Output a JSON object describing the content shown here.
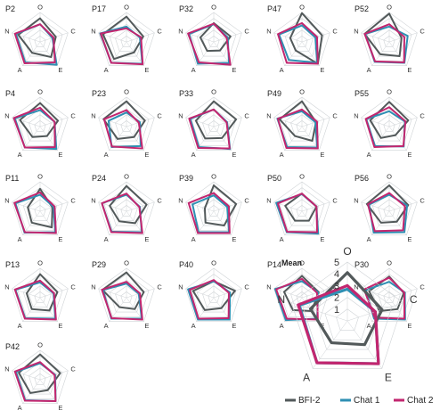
{
  "colors": {
    "BFI-2": "#52595a",
    "Chat 1": "#2e8fb3",
    "Chat 2": "#c2266f",
    "grid": "#cfd3d6"
  },
  "mean_ticks": [
    "1",
    "2",
    "3",
    "4",
    "5"
  ],
  "chart_data": {
    "type": "radar",
    "axes": [
      "O",
      "C",
      "E",
      "A",
      "N"
    ],
    "rlim": [
      0,
      5
    ],
    "legend": {
      "placement": "bottom-right",
      "entries": [
        "BFI-2",
        "Chat 1",
        "Chat 2"
      ]
    },
    "panels": [
      {
        "title": "P2",
        "series": [
          {
            "name": "BFI-2",
            "values": [
              4.0,
              2.8,
              3.2,
              2.3,
              3.9
            ]
          },
          {
            "name": "Chat 1",
            "values": [
              3.0,
              2.2,
              4.8,
              4.3,
              4.3
            ]
          },
          {
            "name": "Chat 2",
            "values": [
              3.0,
              2.4,
              4.3,
              4.5,
              4.5
            ]
          }
        ]
      },
      {
        "title": "P17",
        "series": [
          {
            "name": "BFI-2",
            "values": [
              4.3,
              3.0,
              2.2,
              3.6,
              4.2
            ]
          },
          {
            "name": "Chat 1",
            "values": [
              2.6,
              2.4,
              4.6,
              4.4,
              4.7
            ]
          },
          {
            "name": "Chat 2",
            "values": [
              2.3,
              2.6,
              4.7,
              4.4,
              4.6
            ]
          }
        ]
      },
      {
        "title": "P32",
        "series": [
          {
            "name": "BFI-2",
            "values": [
              3.2,
              3.0,
              1.8,
              1.9,
              2.4
            ]
          },
          {
            "name": "Chat 1",
            "values": [
              3.0,
              2.5,
              4.4,
              4.6,
              4.4
            ]
          },
          {
            "name": "Chat 2",
            "values": [
              3.1,
              2.3,
              4.8,
              4.3,
              4.6
            ]
          }
        ]
      },
      {
        "title": "P47",
        "series": [
          {
            "name": "BFI-2",
            "values": [
              4.9,
              3.6,
              4.6,
              1.8,
              2.1
            ]
          },
          {
            "name": "Chat 1",
            "values": [
              2.8,
              2.4,
              4.4,
              3.8,
              4.1
            ]
          },
          {
            "name": "Chat 2",
            "values": [
              3.2,
              2.7,
              4.6,
              4.4,
              4.3
            ]
          }
        ]
      },
      {
        "title": "P52",
        "series": [
          {
            "name": "BFI-2",
            "values": [
              4.8,
              2.2,
              3.0,
              2.6,
              4.4
            ]
          },
          {
            "name": "Chat 1",
            "values": [
              2.6,
              3.3,
              4.4,
              4.2,
              4.3
            ]
          },
          {
            "name": "Chat 2",
            "values": [
              3.0,
              2.7,
              4.3,
              4.1,
              4.4
            ]
          }
        ]
      },
      {
        "title": "P4",
        "series": [
          {
            "name": "BFI-2",
            "values": [
              4.0,
              3.2,
              2.0,
              2.2,
              3.6
            ]
          },
          {
            "name": "Chat 1",
            "values": [
              2.8,
              2.6,
              4.7,
              4.4,
              4.5
            ]
          },
          {
            "name": "Chat 2",
            "values": [
              3.2,
              2.6,
              4.3,
              4.4,
              4.7
            ]
          }
        ]
      },
      {
        "title": "P23",
        "series": [
          {
            "name": "BFI-2",
            "values": [
              4.3,
              3.3,
              2.2,
              2.6,
              4.1
            ]
          },
          {
            "name": "Chat 1",
            "values": [
              2.4,
              2.4,
              4.1,
              4.3,
              3.2
            ]
          },
          {
            "name": "Chat 2",
            "values": [
              2.8,
              2.2,
              4.6,
              4.2,
              4.0
            ]
          }
        ]
      },
      {
        "title": "P33",
        "series": [
          {
            "name": "BFI-2",
            "values": [
              4.3,
              4.0,
              2.4,
              2.5,
              3.2
            ]
          },
          {
            "name": "Chat 1",
            "values": [
              2.9,
              2.4,
              4.7,
              4.3,
              4.2
            ]
          },
          {
            "name": "Chat 2",
            "values": [
              2.9,
              2.3,
              4.6,
              4.5,
              4.4
            ]
          }
        ]
      },
      {
        "title": "P49",
        "series": [
          {
            "name": "BFI-2",
            "values": [
              4.3,
              2.5,
              3.0,
              2.0,
              4.0
            ]
          },
          {
            "name": "Chat 1",
            "values": [
              2.6,
              2.4,
              4.4,
              4.3,
              4.4
            ]
          },
          {
            "name": "Chat 2",
            "values": [
              2.9,
              2.7,
              4.6,
              4.5,
              4.3
            ]
          }
        ]
      },
      {
        "title": "P55",
        "series": [
          {
            "name": "BFI-2",
            "values": [
              4.2,
              3.4,
              1.8,
              2.4,
              3.4
            ]
          },
          {
            "name": "Chat 1",
            "values": [
              2.6,
              2.8,
              4.2,
              4.1,
              4.1
            ]
          },
          {
            "name": "Chat 2",
            "values": [
              3.3,
              2.9,
              4.1,
              4.3,
              4.2
            ]
          }
        ]
      },
      {
        "title": "P11",
        "series": [
          {
            "name": "BFI-2",
            "values": [
              3.8,
              2.2,
              3.4,
              2.4,
              2.2
            ]
          },
          {
            "name": "Chat 1",
            "values": [
              2.8,
              2.4,
              4.4,
              4.5,
              4.4
            ]
          },
          {
            "name": "Chat 2",
            "values": [
              3.2,
              2.6,
              4.6,
              4.4,
              4.6
            ]
          }
        ]
      },
      {
        "title": "P24",
        "series": [
          {
            "name": "BFI-2",
            "values": [
              4.3,
              3.6,
              2.5,
              2.1,
              3.0
            ]
          },
          {
            "name": "Chat 1",
            "values": [
              2.8,
              2.4,
              4.4,
              4.3,
              4.4
            ]
          },
          {
            "name": "Chat 2",
            "values": [
              3.0,
              2.3,
              4.6,
              4.4,
              4.4
            ]
          }
        ]
      },
      {
        "title": "P39",
        "series": [
          {
            "name": "BFI-2",
            "values": [
              4.4,
              4.0,
              3.0,
              2.4,
              1.6
            ]
          },
          {
            "name": "Chat 1",
            "values": [
              2.7,
              2.4,
              4.4,
              4.4,
              3.8
            ]
          },
          {
            "name": "Chat 2",
            "values": [
              3.1,
              2.7,
              4.6,
              4.6,
              4.5
            ]
          }
        ]
      },
      {
        "title": "P50",
        "series": [
          {
            "name": "BFI-2",
            "values": [
              3.0,
              2.6,
              2.0,
              2.0,
              3.0
            ]
          },
          {
            "name": "Chat 1",
            "values": [
              2.9,
              2.6,
              4.7,
              4.4,
              4.6
            ]
          },
          {
            "name": "Chat 2",
            "values": [
              3.0,
              2.6,
              4.4,
              4.3,
              4.3
            ]
          }
        ]
      },
      {
        "title": "P56",
        "series": [
          {
            "name": "BFI-2",
            "values": [
              4.4,
              3.4,
              2.2,
              2.4,
              4.0
            ]
          },
          {
            "name": "Chat 1",
            "values": [
              2.8,
              3.2,
              4.4,
              4.5,
              3.6
            ]
          },
          {
            "name": "Chat 2",
            "values": [
              3.1,
              2.8,
              4.0,
              4.2,
              3.8
            ]
          }
        ]
      },
      {
        "title": "P13",
        "series": [
          {
            "name": "BFI-2",
            "values": [
              4.0,
              3.1,
              2.7,
              2.4,
              2.4
            ]
          },
          {
            "name": "Chat 1",
            "values": [
              2.6,
              2.4,
              4.4,
              4.3,
              4.4
            ]
          },
          {
            "name": "Chat 2",
            "values": [
              2.9,
              2.5,
              4.6,
              4.4,
              4.5
            ]
          }
        ]
      },
      {
        "title": "P29",
        "series": [
          {
            "name": "BFI-2",
            "values": [
              4.3,
              3.1,
              2.4,
              2.0,
              4.3
            ]
          },
          {
            "name": "Chat 1",
            "values": [
              2.4,
              2.2,
              4.4,
              4.4,
              4.2
            ]
          },
          {
            "name": "Chat 2",
            "values": [
              2.7,
              2.4,
              4.6,
              4.3,
              4.4
            ]
          }
        ]
      },
      {
        "title": "P40",
        "series": [
          {
            "name": "BFI-2",
            "values": [
              2.8,
              3.8,
              2.2,
              2.6,
              3.7
            ]
          },
          {
            "name": "Chat 1",
            "values": [
              2.8,
              2.9,
              4.6,
              4.6,
              4.6
            ]
          },
          {
            "name": "Chat 2",
            "values": [
              3.0,
              2.7,
              4.3,
              4.4,
              4.3
            ]
          }
        ]
      },
      {
        "title": "P14",
        "series": [
          {
            "name": "BFI-2",
            "values": [
              3.7,
              3.0,
              2.8,
              2.6,
              3.2
            ]
          },
          {
            "name": "Chat 1",
            "values": [
              2.8,
              2.9,
              4.4,
              4.7,
              4.8
            ]
          },
          {
            "name": "Chat 2",
            "values": [
              3.2,
              2.7,
              4.6,
              4.4,
              4.6
            ]
          }
        ]
      },
      {
        "title": "P30",
        "series": [
          {
            "name": "BFI-2",
            "values": [
              3.6,
              2.6,
              2.4,
              2.8,
              3.6
            ]
          },
          {
            "name": "Chat 1",
            "values": [
              2.7,
              2.8,
              4.6,
              4.4,
              4.2
            ]
          },
          {
            "name": "Chat 2",
            "values": [
              3.4,
              2.7,
              4.4,
              4.2,
              4.5
            ]
          }
        ]
      },
      {
        "title": "P42",
        "series": [
          {
            "name": "BFI-2",
            "values": [
              4.3,
              3.6,
              2.2,
              2.8,
              3.8
            ]
          },
          {
            "name": "Chat 1",
            "values": [
              2.8,
              2.7,
              4.5,
              4.3,
              4.3
            ]
          },
          {
            "name": "Chat 2",
            "values": [
              3.0,
              2.6,
              4.5,
              4.4,
              4.5
            ]
          }
        ]
      }
    ],
    "mean": {
      "title": "Mean",
      "series": [
        {
          "name": "BFI-2",
          "values": [
            4.1,
            3.1,
            2.5,
            2.3,
            3.3
          ]
        },
        {
          "name": "Chat 1",
          "values": [
            2.7,
            2.5,
            4.5,
            4.4,
            4.3
          ]
        },
        {
          "name": "Chat 2",
          "values": [
            3.0,
            2.5,
            4.5,
            4.4,
            4.4
          ]
        }
      ]
    }
  }
}
